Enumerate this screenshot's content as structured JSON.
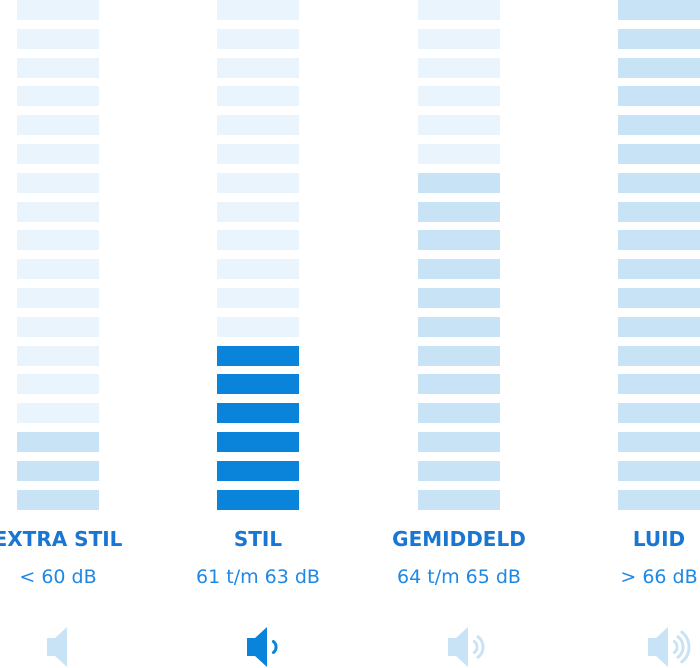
{
  "colors": {
    "faint": "#eaf4fc",
    "light": "#c8e3f6",
    "active": "#0a84da",
    "label": "#1976d2"
  },
  "levels": [
    {
      "name": "EXTRA STIL",
      "range": "< 60 dB",
      "light_segments": 3,
      "active_segments": 0,
      "icon": "speaker-mute-icon",
      "icon_active": false,
      "waves": 0
    },
    {
      "name": "STIL",
      "range": "61 t/m 63 dB",
      "light_segments": 0,
      "active_segments": 6,
      "icon": "speaker-low-icon",
      "icon_active": true,
      "waves": 1
    },
    {
      "name": "GEMIDDELD",
      "range": "64 t/m 65 dB",
      "light_segments": 12,
      "active_segments": 0,
      "icon": "speaker-medium-icon",
      "icon_active": false,
      "waves": 2
    },
    {
      "name": "LUID",
      "range": "> 66 dB",
      "light_segments": 18,
      "active_segments": 0,
      "icon": "speaker-high-icon",
      "icon_active": false,
      "waves": 3
    }
  ],
  "total_segments": 18
}
